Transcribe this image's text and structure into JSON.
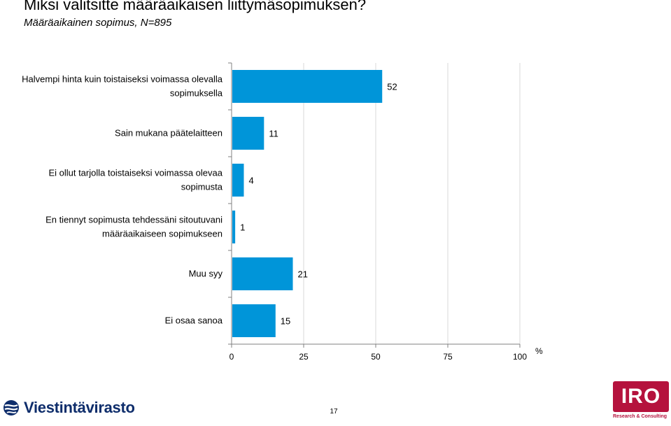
{
  "header": {
    "title": "Miksi valitsitte määräaikaisen liittymäsopimuksen?",
    "subtitle": "Määräaikainen sopimus, N=895"
  },
  "chart_data": {
    "type": "bar",
    "orientation": "horizontal",
    "categories": [
      [
        "Halvempi hinta kuin toistaiseksi voimassa olevalla",
        "sopimuksella"
      ],
      [
        "Sain mukana päätelaitteen"
      ],
      [
        "Ei ollut tarjolla toistaiseksi voimassa olevaa",
        "sopimusta"
      ],
      [
        "En tiennyt sopimusta tehdessäni sitoutuvani",
        "määräaikaiseen sopimukseen"
      ],
      [
        "Muu syy"
      ],
      [
        "Ei osaa sanoa"
      ]
    ],
    "values": [
      52,
      11,
      4,
      1,
      21,
      15
    ],
    "xlim": [
      0,
      100
    ],
    "xticks": [
      0,
      25,
      50,
      75,
      100
    ],
    "unit_label": "%",
    "bar_color": "#0095d9",
    "grid": "vertical"
  },
  "footer": {
    "page_number": "17",
    "brand_left": "Viestintävirasto",
    "brand_right": "IRO",
    "brand_right_tagline": "Research & Consulting"
  },
  "colors": {
    "brand_left": "#0e2d6b",
    "brand_right": "#b5123d"
  }
}
